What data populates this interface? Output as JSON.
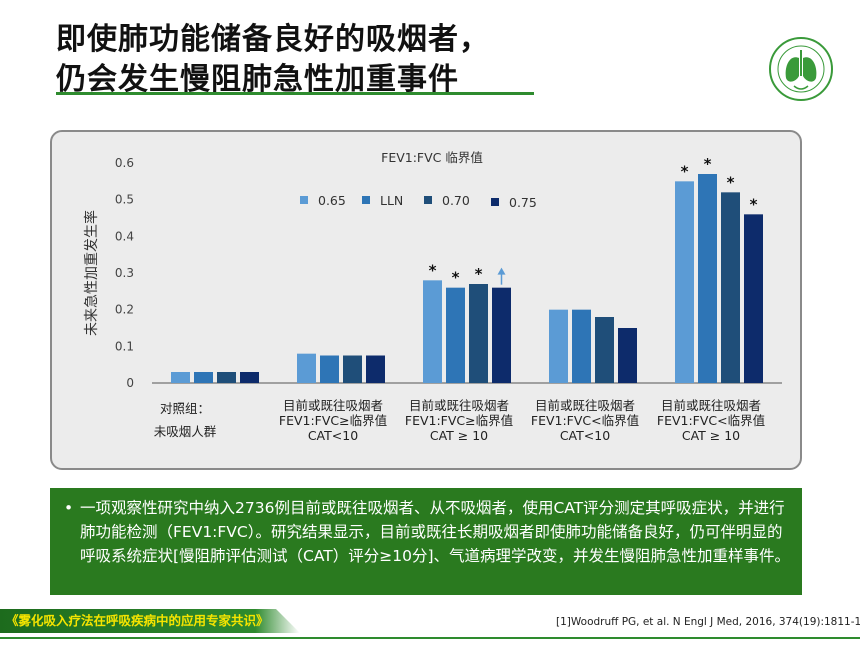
{
  "slide": {
    "title_line1": "即使肺功能储备良好的吸烟者，",
    "title_line2": "仍会发生慢阻肺急性加重事件",
    "note": "一项观察性研究中纳入2736例目前或既往吸烟者、从不吸烟者，使用CAT评分测定其呼吸症状，并进行肺功能检测（FEV1:FVC）。研究结果显示，目前或既往长期吸烟者即使肺功能储备良好，仍可伴明显的呼吸系统症状[慢阻肺评估测试（CAT）评分≥10分]、气道病理学改变，并发生慢阻肺急性加重样事件。",
    "note_bullet": "•",
    "footer_source": "《雾化吸入疗法在呼吸疾病中的应用专家共识》",
    "citation": "[1]Woodruff PG, et al. N Engl J Med, 2016, 374(19):1811-1821."
  },
  "colors": {
    "accent_green": "#2e8b2e",
    "note_bg": "#2a7a1f",
    "footer_text": "#f5e400"
  },
  "chart_data": {
    "type": "bar",
    "legend_title": "FEV1:FVC 临界值",
    "ylabel": "未来急性加重发生率",
    "ylim": [
      0,
      0.6
    ],
    "yticks": [
      "0",
      "0.1",
      "0.2",
      "0.3",
      "0.4",
      "0.5",
      "0.6"
    ],
    "categories": [
      [
        "对照组：",
        "未吸烟人群"
      ],
      [
        "目前或既往吸烟者",
        "FEV1:FVC≥临界值",
        "CAT<10"
      ],
      [
        "目前或既往吸烟者",
        "FEV1:FVC≥临界值",
        "CAT ≥ 10"
      ],
      [
        "目前或既往吸烟者",
        "FEV1:FVC<临界值",
        "CAT<10"
      ],
      [
        "目前或既往吸烟者",
        "FEV1:FVC<临界值",
        "CAT ≥ 10"
      ]
    ],
    "series": [
      {
        "name": "0.65",
        "color": "#5b9bd5",
        "values": [
          0.03,
          0.08,
          0.28,
          0.2,
          0.55
        ]
      },
      {
        "name": "LLN",
        "color": "#2e75b6",
        "values": [
          0.03,
          0.075,
          0.26,
          0.2,
          0.57
        ]
      },
      {
        "name": "0.70",
        "color": "#1f4e79",
        "values": [
          0.03,
          0.075,
          0.27,
          0.18,
          0.52
        ]
      },
      {
        "name": "0.75",
        "color": "#0d2b6b",
        "values": [
          0.03,
          0.075,
          0.26,
          0.15,
          0.46
        ]
      }
    ],
    "significance": [
      [
        false,
        false,
        false,
        false
      ],
      [
        false,
        false,
        false,
        false
      ],
      [
        true,
        true,
        true,
        false
      ],
      [
        false,
        false,
        false,
        false
      ],
      [
        true,
        true,
        true,
        true
      ]
    ],
    "significance_mark": "*",
    "trend_arrow": {
      "category": 2,
      "series": 3,
      "icon": "up-arrow-icon",
      "color": "#5b9bd5"
    },
    "legend_placement": "top-center",
    "grid": false
  }
}
